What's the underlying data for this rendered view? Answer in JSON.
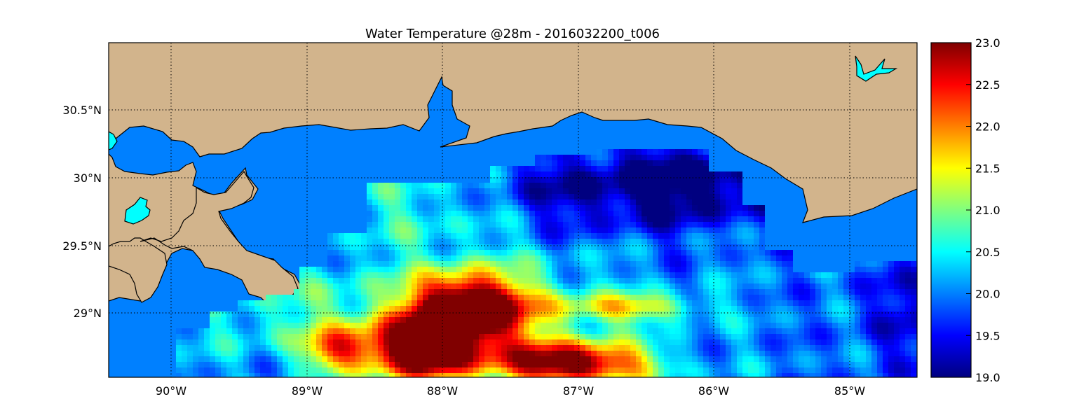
{
  "title": "Water Temperature @28m - 2016032200_t006",
  "map": {
    "lon_range": [
      -90.5,
      -84.5
    ],
    "lat_range": [
      28.55,
      31.0
    ],
    "x_ticks": [
      {
        "value": -90,
        "label": "90°W"
      },
      {
        "value": -89,
        "label": "89°W"
      },
      {
        "value": -88,
        "label": "88°W"
      },
      {
        "value": -87,
        "label": "87°W"
      },
      {
        "value": -86,
        "label": "86°W"
      },
      {
        "value": -85,
        "label": "85°W"
      }
    ],
    "y_ticks": [
      {
        "value": 30.5,
        "label": "30.5°N"
      },
      {
        "value": 30.0,
        "label": "30°N"
      },
      {
        "value": 29.5,
        "label": "29.5°N"
      },
      {
        "value": 29.0,
        "label": "29°N"
      }
    ],
    "grid": "dotted",
    "colors": {
      "land": "#d2b48c",
      "shelf_water": "#0080ff",
      "lakes": "#00ffff",
      "coastline": "#000000"
    }
  },
  "colorbar": {
    "min": 19.0,
    "max": 23.0,
    "colormap": "jet",
    "ticks": [
      "23.0",
      "22.5",
      "22.0",
      "21.5",
      "21.0",
      "20.5",
      "20.0",
      "19.5",
      "19.0"
    ]
  }
}
